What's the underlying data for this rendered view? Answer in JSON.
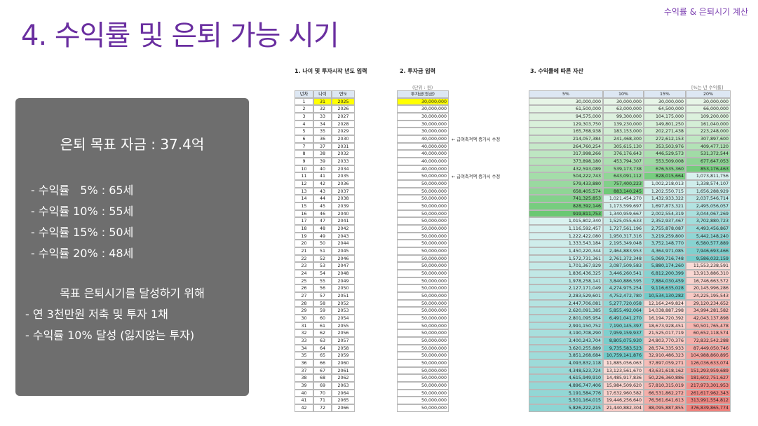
{
  "header": {
    "title": "4. 수익률 및 은퇴 가능 시기",
    "subtitle": "수익률 & 은퇴시기 계산"
  },
  "summary": {
    "goal": "은퇴 목표 자금 : 37.4억",
    "items": [
      "- 수익률   5% : 65세",
      "- 수익률 10% : 55세",
      "- 수익률 15% : 50세",
      "- 수익률 20% : 48세"
    ],
    "plan_title": "목표 은퇴시기를 달성하기 위해",
    "plan_items": [
      "- 연 3천만원 저축 및 투자 1채",
      "- 수익률 10% 달성 (잃지않는 투자)"
    ]
  },
  "sections": {
    "age": "1. 나이 및 투자시작 년도 입력",
    "invest": "2. 투자금 입력",
    "assets": "3. 수익률에 따른 자산"
  },
  "unit_note": "(단위 : 원)",
  "rate_note": "[%는 년 수익률]",
  "age_table": {
    "headers": [
      "년차",
      "나이",
      "연도"
    ]
  },
  "invest_table": {
    "header": "투자금(원금)",
    "rows": [
      "30,000,000",
      "30,000,000",
      "30,000,000",
      "30,000,000",
      "30,000,000",
      "40,000,000",
      "40,000,000",
      "40,000,000",
      "40,000,000",
      "40,000,000",
      "50,000,000",
      "50,000,000",
      "50,000,000",
      "50,000,000",
      "50,000,000",
      "50,000,000",
      "50,000,000",
      "50,000,000",
      "50,000,000",
      "50,000,000",
      "50,000,000",
      "50,000,000",
      "50,000,000",
      "50,000,000",
      "50,000,000",
      "50,000,000",
      "50,000,000",
      "50,000,000",
      "50,000,000",
      "50,000,000",
      "50,000,000",
      "50,000,000",
      "50,000,000",
      "50,000,000",
      "50,000,000",
      "50,000,000",
      "50,000,000",
      "50,000,000",
      "50,000,000",
      "50,000,000",
      "50,000,000",
      "50,000,000"
    ],
    "notes": [
      {
        "row": 6,
        "text": "← 급여축적액 증가시 수정"
      },
      {
        "row": 11,
        "text": "← 급여축적액 증가시 수정"
      }
    ]
  },
  "asset_table": {
    "headers": [
      "5%",
      "10%",
      "15%",
      "20%"
    ],
    "rows": [
      [
        "30,000,000",
        "30,000,000",
        "30,000,000",
        "30,000,000"
      ],
      [
        "61,500,000",
        "63,000,000",
        "64,500,000",
        "66,000,000"
      ],
      [
        "94,575,000",
        "99,300,000",
        "104,175,000",
        "109,200,000"
      ],
      [
        "129,303,750",
        "139,230,000",
        "149,801,250",
        "161,040,000"
      ],
      [
        "165,768,938",
        "183,153,000",
        "202,271,438",
        "223,248,000"
      ],
      [
        "214,057,384",
        "241,468,300",
        "272,612,153",
        "307,897,600"
      ],
      [
        "264,760,254",
        "305,615,130",
        "353,503,976",
        "409,477,120"
      ],
      [
        "317,998,266",
        "376,176,643",
        "446,529,573",
        "531,372,544"
      ],
      [
        "373,898,180",
        "453,794,307",
        "553,509,008",
        "677,647,053"
      ],
      [
        "432,593,089",
        "539,173,738",
        "676,535,360",
        "853,176,463"
      ],
      [
        "504,222,743",
        "643,091,112",
        "828,015,664",
        "1,073,811,756"
      ],
      [
        "579,433,880",
        "757,400,223",
        "1,002,218,013",
        "1,338,574,107"
      ],
      [
        "658,405,574",
        "883,140,245",
        "1,202,550,715",
        "1,656,288,929"
      ],
      [
        "741,325,853",
        "1,021,454,270",
        "1,432,933,322",
        "2,037,546,714"
      ],
      [
        "828,392,146",
        "1,173,599,697",
        "1,697,873,321",
        "2,495,056,057"
      ],
      [
        "919,811,753",
        "1,340,959,667",
        "2,002,554,319",
        "3,044,067,269"
      ],
      [
        "1,015,802,340",
        "1,525,055,633",
        "2,352,937,467",
        "3,702,880,723"
      ],
      [
        "1,116,592,457",
        "1,727,561,196",
        "2,755,878,087",
        "4,493,456,867"
      ],
      [
        "1,222,422,080",
        "1,950,317,316",
        "3,219,259,800",
        "5,442,148,240"
      ],
      [
        "1,333,543,184",
        "2,195,349,048",
        "3,752,148,770",
        "6,580,577,889"
      ],
      [
        "1,450,220,344",
        "2,464,883,953",
        "4,364,971,085",
        "7,946,693,466"
      ],
      [
        "1,572,731,361",
        "2,761,372,348",
        "5,069,716,748",
        "9,586,032,159"
      ],
      [
        "1,701,367,929",
        "3,087,509,583",
        "5,880,174,260",
        "11,553,238,591"
      ],
      [
        "1,836,436,325",
        "3,446,260,541",
        "6,812,200,399",
        "13,913,886,310"
      ],
      [
        "1,978,258,141",
        "3,840,886,595",
        "7,884,030,459",
        "16,746,663,572"
      ],
      [
        "2,127,171,049",
        "4,274,975,254",
        "9,116,635,028",
        "20,145,996,286"
      ],
      [
        "2,283,529,601",
        "4,752,472,780",
        "10,534,130,282",
        "24,225,195,543"
      ],
      [
        "2,447,706,081",
        "5,277,720,058",
        "12,164,249,824",
        "29,120,234,652"
      ],
      [
        "2,620,091,385",
        "5,855,492,064",
        "14,038,887,298",
        "34,994,281,582"
      ],
      [
        "2,801,095,954",
        "6,491,041,270",
        "16,194,720,392",
        "42,043,137,898"
      ],
      [
        "2,991,150,752",
        "7,190,145,397",
        "18,673,928,451",
        "50,501,765,478"
      ],
      [
        "3,190,708,290",
        "7,959,159,937",
        "21,525,017,719",
        "60,652,118,574"
      ],
      [
        "3,400,243,704",
        "8,805,075,930",
        "24,803,770,376",
        "72,832,542,288"
      ],
      [
        "3,620,255,889",
        "9,735,583,523",
        "28,574,335,933",
        "87,449,050,746"
      ],
      [
        "3,851,268,684",
        "10,759,141,876",
        "32,910,486,323",
        "104,988,860,895"
      ],
      [
        "4,093,832,118",
        "11,885,056,063",
        "37,897,059,271",
        "126,036,633,074"
      ],
      [
        "4,348,523,724",
        "13,123,561,670",
        "43,631,618,162",
        "151,293,959,689"
      ],
      [
        "4,615,949,910",
        "14,485,917,836",
        "50,226,360,886",
        "181,602,751,627"
      ],
      [
        "4,896,747,406",
        "15,984,509,620",
        "57,810,315,019",
        "217,973,301,953"
      ],
      [
        "5,191,584,776",
        "17,632,960,582",
        "66,531,862,272",
        "261,617,962,343"
      ],
      [
        "5,501,164,015",
        "19,446,256,640",
        "76,561,641,613",
        "313,991,554,812"
      ],
      [
        "5,826,222,215",
        "21,440,882,304",
        "88,095,887,855",
        "376,839,865,774"
      ]
    ]
  }
}
